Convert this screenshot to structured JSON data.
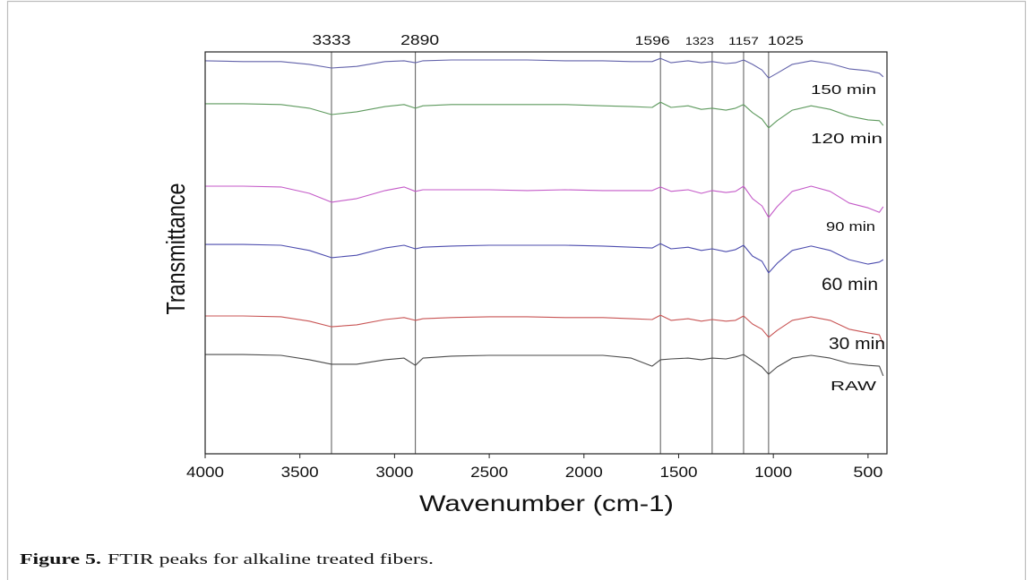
{
  "figure": {
    "border_color": "#bdbdbd",
    "caption": {
      "label": "Figure 5.",
      "text": "FTIR peaks for alkaline treated fibers."
    }
  },
  "chart_data": {
    "type": "line",
    "xlabel": "Wavenumber (cm-1)",
    "ylabel": "Transmittance",
    "xlim": [
      4000,
      400
    ],
    "ylim": [
      0,
      100
    ],
    "xticks": [
      4000,
      3500,
      3000,
      2500,
      2000,
      1500,
      1000,
      500
    ],
    "yticks": [],
    "grid": false,
    "legend": "none",
    "peak_line_color": "#555555",
    "peak_lines": [
      {
        "x": 3333,
        "label": "3333"
      },
      {
        "x": 2890,
        "label": "2890"
      },
      {
        "x": 1596,
        "label": "1596"
      },
      {
        "x": 1323,
        "label": "1323"
      },
      {
        "x": 1157,
        "label": "1157"
      },
      {
        "x": 1025,
        "label": "1025"
      }
    ],
    "x": [
      4000,
      3800,
      3600,
      3450,
      3333,
      3200,
      3050,
      2950,
      2890,
      2850,
      2700,
      2500,
      2300,
      2100,
      1900,
      1750,
      1640,
      1596,
      1540,
      1450,
      1380,
      1323,
      1250,
      1200,
      1157,
      1110,
      1060,
      1025,
      980,
      900,
      800,
      700,
      600,
      500,
      440,
      420
    ],
    "series": [
      {
        "name": "150 min",
        "color": "#6262aa",
        "values": [
          97.8,
          97.6,
          97.6,
          96.9,
          96.0,
          96.4,
          97.6,
          97.8,
          97.3,
          97.8,
          98.0,
          98.0,
          98.0,
          97.8,
          97.8,
          97.6,
          97.6,
          98.4,
          97.3,
          97.8,
          97.3,
          97.6,
          97.1,
          97.3,
          98.0,
          96.9,
          95.5,
          93.5,
          94.7,
          96.9,
          97.8,
          97.1,
          95.8,
          95.3,
          94.7,
          93.8
        ]
      },
      {
        "name": "120 min",
        "color": "#5e9a5e",
        "values": [
          87.1,
          87.1,
          86.9,
          86.0,
          84.4,
          85.1,
          86.4,
          86.9,
          86.0,
          86.6,
          86.9,
          86.9,
          86.9,
          86.9,
          86.6,
          86.4,
          86.2,
          87.5,
          86.2,
          86.6,
          85.7,
          86.0,
          85.5,
          86.0,
          86.9,
          84.9,
          83.3,
          81.1,
          82.9,
          85.5,
          86.6,
          85.7,
          84.0,
          83.1,
          82.9,
          81.7
        ]
      },
      {
        "name": "90 min",
        "color": "#c45ac8",
        "values": [
          66.6,
          66.6,
          66.4,
          64.8,
          62.6,
          63.5,
          65.5,
          66.4,
          65.3,
          65.7,
          65.7,
          65.7,
          65.5,
          65.7,
          65.5,
          65.5,
          65.5,
          66.4,
          65.3,
          65.7,
          64.8,
          65.5,
          65.0,
          65.3,
          66.6,
          63.5,
          61.7,
          58.8,
          61.5,
          65.3,
          66.6,
          65.3,
          62.4,
          61.2,
          60.1,
          61.5
        ]
      },
      {
        "name": "60 min",
        "color": "#4c4cae",
        "values": [
          52.1,
          52.1,
          51.9,
          50.6,
          48.8,
          49.4,
          51.2,
          51.9,
          51.0,
          51.4,
          51.7,
          51.9,
          51.9,
          51.9,
          51.7,
          51.4,
          51.2,
          52.3,
          51.0,
          51.4,
          50.6,
          51.0,
          50.3,
          50.8,
          51.9,
          49.2,
          47.9,
          45.0,
          47.4,
          50.6,
          51.7,
          50.6,
          48.3,
          47.2,
          47.7,
          48.3
        ]
      },
      {
        "name": "30 min",
        "color": "#c85454",
        "values": [
          34.3,
          34.3,
          34.1,
          33.0,
          31.6,
          32.1,
          33.4,
          33.9,
          33.2,
          33.6,
          33.9,
          34.1,
          34.1,
          33.9,
          33.9,
          33.6,
          33.4,
          34.5,
          33.2,
          33.6,
          33.0,
          33.4,
          33.0,
          33.2,
          34.3,
          32.3,
          31.0,
          29.0,
          30.7,
          33.2,
          34.1,
          33.2,
          31.0,
          30.1,
          29.6,
          27.2
        ]
      },
      {
        "name": "RAW",
        "color": "#4a4a4a",
        "values": [
          24.7,
          24.7,
          24.5,
          23.4,
          22.3,
          22.3,
          23.4,
          23.8,
          22.0,
          23.8,
          24.3,
          24.5,
          24.5,
          24.5,
          24.5,
          23.8,
          21.8,
          23.4,
          23.6,
          23.8,
          23.4,
          23.8,
          23.6,
          24.1,
          24.7,
          23.2,
          21.6,
          19.8,
          21.6,
          23.8,
          24.5,
          23.8,
          22.5,
          22.0,
          21.8,
          19.4
        ]
      }
    ]
  }
}
